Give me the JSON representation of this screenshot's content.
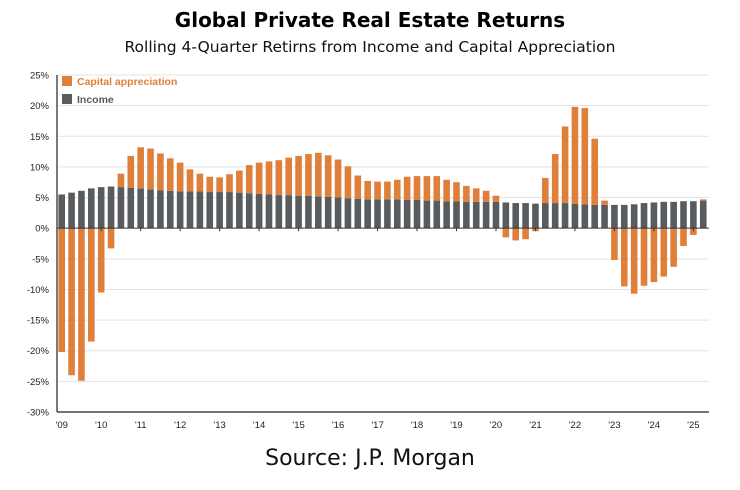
{
  "title": "Global Private Real Estate Returns",
  "subtitle": "Rolling 4-Quarter Retirns from Income and Capital Appreciation",
  "source": "Source: J.P. Morgan",
  "colors": {
    "capital": "#e07f3a",
    "income": "#595c5f"
  },
  "chart_data": {
    "type": "bar",
    "stacked": true,
    "title": "Global Private Real Estate Returns",
    "subtitle": "Rolling 4-Quarter Retirns from Income and Capital Appreciation",
    "xlabel": "",
    "ylabel": "",
    "ylim": [
      -30,
      25
    ],
    "yticks": [
      "25%",
      "20%",
      "15%",
      "10%",
      "5%",
      "0%",
      "-5%",
      "-10%",
      "-15%",
      "-20%",
      "-25%",
      "-30%"
    ],
    "xticks": [
      "'09",
      "'10",
      "'11",
      "'12",
      "'13",
      "'14",
      "'15",
      "'16",
      "'17",
      "'18",
      "'19",
      "'20",
      "'21",
      "'22",
      "'23",
      "'24",
      "'25"
    ],
    "grid": true,
    "legend": "top-left",
    "categories": [
      "09Q1",
      "09Q2",
      "09Q3",
      "09Q4",
      "10Q1",
      "10Q2",
      "10Q3",
      "10Q4",
      "11Q1",
      "11Q2",
      "11Q3",
      "11Q4",
      "12Q1",
      "12Q2",
      "12Q3",
      "12Q4",
      "13Q1",
      "13Q2",
      "13Q3",
      "13Q4",
      "14Q1",
      "14Q2",
      "14Q3",
      "14Q4",
      "15Q1",
      "15Q2",
      "15Q3",
      "15Q4",
      "16Q1",
      "16Q2",
      "16Q3",
      "16Q4",
      "17Q1",
      "17Q2",
      "17Q3",
      "17Q4",
      "18Q1",
      "18Q2",
      "18Q3",
      "18Q4",
      "19Q1",
      "19Q2",
      "19Q3",
      "19Q4",
      "20Q1",
      "20Q2",
      "20Q3",
      "20Q4",
      "21Q1",
      "21Q2",
      "21Q3",
      "21Q4",
      "22Q1",
      "22Q2",
      "22Q3",
      "22Q4",
      "23Q1",
      "23Q2",
      "23Q3",
      "23Q4",
      "24Q1",
      "24Q2",
      "24Q3",
      "24Q4",
      "25Q1",
      "25Q2"
    ],
    "series": [
      {
        "name": "Capital appreciation",
        "values": [
          -20.2,
          -24.0,
          -24.9,
          -18.5,
          -10.5,
          -3.3,
          2.2,
          5.2,
          6.7,
          6.7,
          6.0,
          5.3,
          4.7,
          3.6,
          2.9,
          2.5,
          2.4,
          2.9,
          3.6,
          4.6,
          5.1,
          5.4,
          5.7,
          6.1,
          6.5,
          6.8,
          7.1,
          6.8,
          6.2,
          5.2,
          3.8,
          3.0,
          2.9,
          2.9,
          3.2,
          3.8,
          3.9,
          4.0,
          4.0,
          3.5,
          3.1,
          2.6,
          2.2,
          1.8,
          1.0,
          -1.5,
          -2.0,
          -1.8,
          -0.5,
          4.1,
          8.0,
          12.5,
          15.8,
          15.7,
          10.8,
          0.7,
          -5.2,
          -9.5,
          -10.7,
          -9.4,
          -8.8,
          -7.9,
          -6.3,
          -2.9,
          -1.1,
          0.2
        ]
      },
      {
        "name": "Income",
        "values": [
          5.5,
          5.8,
          6.1,
          6.5,
          6.7,
          6.8,
          6.7,
          6.6,
          6.5,
          6.3,
          6.2,
          6.1,
          6.0,
          6.0,
          6.0,
          5.9,
          5.9,
          5.9,
          5.8,
          5.7,
          5.6,
          5.5,
          5.4,
          5.4,
          5.3,
          5.3,
          5.2,
          5.1,
          5.0,
          4.9,
          4.8,
          4.7,
          4.7,
          4.7,
          4.7,
          4.6,
          4.6,
          4.5,
          4.5,
          4.4,
          4.4,
          4.3,
          4.3,
          4.3,
          4.3,
          4.2,
          4.1,
          4.1,
          4.0,
          4.1,
          4.1,
          4.1,
          4.0,
          3.9,
          3.8,
          3.8,
          3.8,
          3.8,
          3.9,
          4.1,
          4.2,
          4.3,
          4.3,
          4.4,
          4.4,
          4.5
        ]
      }
    ]
  }
}
